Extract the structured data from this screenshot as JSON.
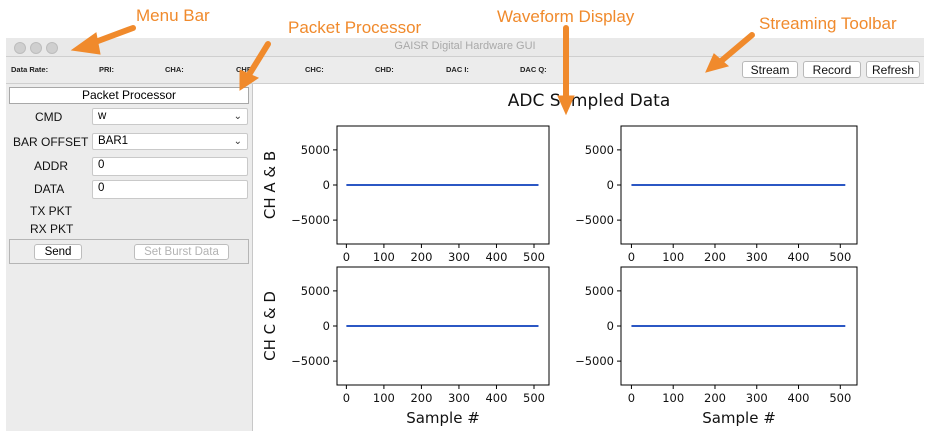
{
  "window": {
    "title": "GAISR Digital Hardware GUI"
  },
  "status_bar": {
    "labels": [
      "Data Rate:",
      "PRI:",
      "CHA:",
      "CHB:",
      "CHC:",
      "CHD:",
      "DAC I:",
      "DAC Q:"
    ],
    "buttons": {
      "stream": "Stream",
      "record": "Record",
      "refresh": "Refresh"
    }
  },
  "packet_processor": {
    "title": "Packet Processor",
    "cmd_label": "CMD",
    "cmd_value": "w",
    "bar_offset_label": "BAR OFFSET",
    "bar_offset_value": "BAR1",
    "addr_label": "ADDR",
    "addr_value": "0",
    "data_label": "DATA",
    "data_value": "0",
    "tx_label": "TX PKT",
    "rx_label": "RX PKT",
    "send_label": "Send",
    "burst_label": "Set Burst Data"
  },
  "annotations": {
    "menu_bar": "Menu Bar",
    "packet_processor": "Packet Processor",
    "waveform_display": "Waveform Display",
    "streaming_toolbar": "Streaming Toolbar"
  },
  "colors": {
    "annotation": "#f08a2c",
    "trace": "#2b57c4"
  },
  "chart_data": [
    {
      "type": "line",
      "title": "ADC Sampled Data",
      "ylabel": "CH A & B",
      "xlabel": "",
      "x": [
        0,
        512
      ],
      "y": [
        0,
        0
      ],
      "xlim": [
        -25,
        540
      ],
      "ylim": [
        -8400,
        8400
      ],
      "xticks": [
        0,
        100,
        200,
        300,
        400,
        500
      ],
      "yticks": [
        5000,
        0,
        -5000
      ]
    },
    {
      "type": "line",
      "title": "",
      "ylabel": "",
      "xlabel": "",
      "x": [
        0,
        512
      ],
      "y": [
        0,
        0
      ],
      "xlim": [
        -25,
        540
      ],
      "ylim": [
        -8400,
        8400
      ],
      "xticks": [
        0,
        100,
        200,
        300,
        400,
        500
      ],
      "yticks": [
        5000,
        0,
        -5000
      ]
    },
    {
      "type": "line",
      "title": "",
      "ylabel": "CH C & D",
      "xlabel": "Sample #",
      "x": [
        0,
        512
      ],
      "y": [
        0,
        0
      ],
      "xlim": [
        -25,
        540
      ],
      "ylim": [
        -8400,
        8400
      ],
      "xticks": [
        0,
        100,
        200,
        300,
        400,
        500
      ],
      "yticks": [
        5000,
        0,
        -5000
      ]
    },
    {
      "type": "line",
      "title": "",
      "ylabel": "",
      "xlabel": "Sample #",
      "x": [
        0,
        512
      ],
      "y": [
        0,
        0
      ],
      "xlim": [
        -25,
        540
      ],
      "ylim": [
        -8400,
        8400
      ],
      "xticks": [
        0,
        100,
        200,
        300,
        400,
        500
      ],
      "yticks": [
        5000,
        0,
        -5000
      ]
    }
  ]
}
